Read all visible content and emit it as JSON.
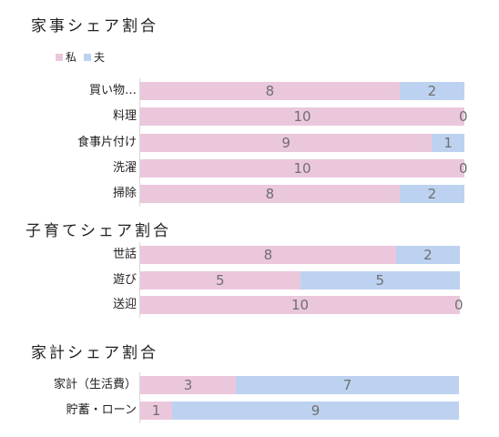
{
  "chart_data": [
    {
      "type": "bar",
      "orientation": "horizontal",
      "stacked": true,
      "title": "家事シェア割合",
      "legend": {
        "position": "top-left",
        "entries": [
          "私",
          "夫"
        ]
      },
      "categories": [
        "買い物…",
        "料理",
        "食事片付け",
        "洗濯",
        "掃除"
      ],
      "series": [
        {
          "name": "私",
          "values": [
            8,
            10,
            9,
            10,
            8
          ]
        },
        {
          "name": "夫",
          "values": [
            2,
            0,
            1,
            0,
            2
          ]
        }
      ],
      "xlim": [
        0,
        10
      ]
    },
    {
      "type": "bar",
      "orientation": "horizontal",
      "stacked": true,
      "title": "子育てシェア割合",
      "categories": [
        "世話",
        "遊び",
        "送迎"
      ],
      "series": [
        {
          "name": "私",
          "values": [
            8,
            5,
            10
          ]
        },
        {
          "name": "夫",
          "values": [
            2,
            5,
            0
          ]
        }
      ],
      "xlim": [
        0,
        10
      ]
    },
    {
      "type": "bar",
      "orientation": "horizontal",
      "stacked": true,
      "title": "家計シェア割合",
      "categories": [
        "家計（生活費）",
        "貯蓄・ローン"
      ],
      "series": [
        {
          "name": "私",
          "values": [
            3,
            1
          ]
        },
        {
          "name": "夫",
          "values": [
            7,
            9
          ]
        }
      ],
      "xlim": [
        0,
        10
      ]
    }
  ],
  "colors": {
    "me": "#ebc7dc",
    "husband": "#bdd2f0",
    "value_text": "#6f6f6f",
    "axis": "#d8d8d8"
  }
}
